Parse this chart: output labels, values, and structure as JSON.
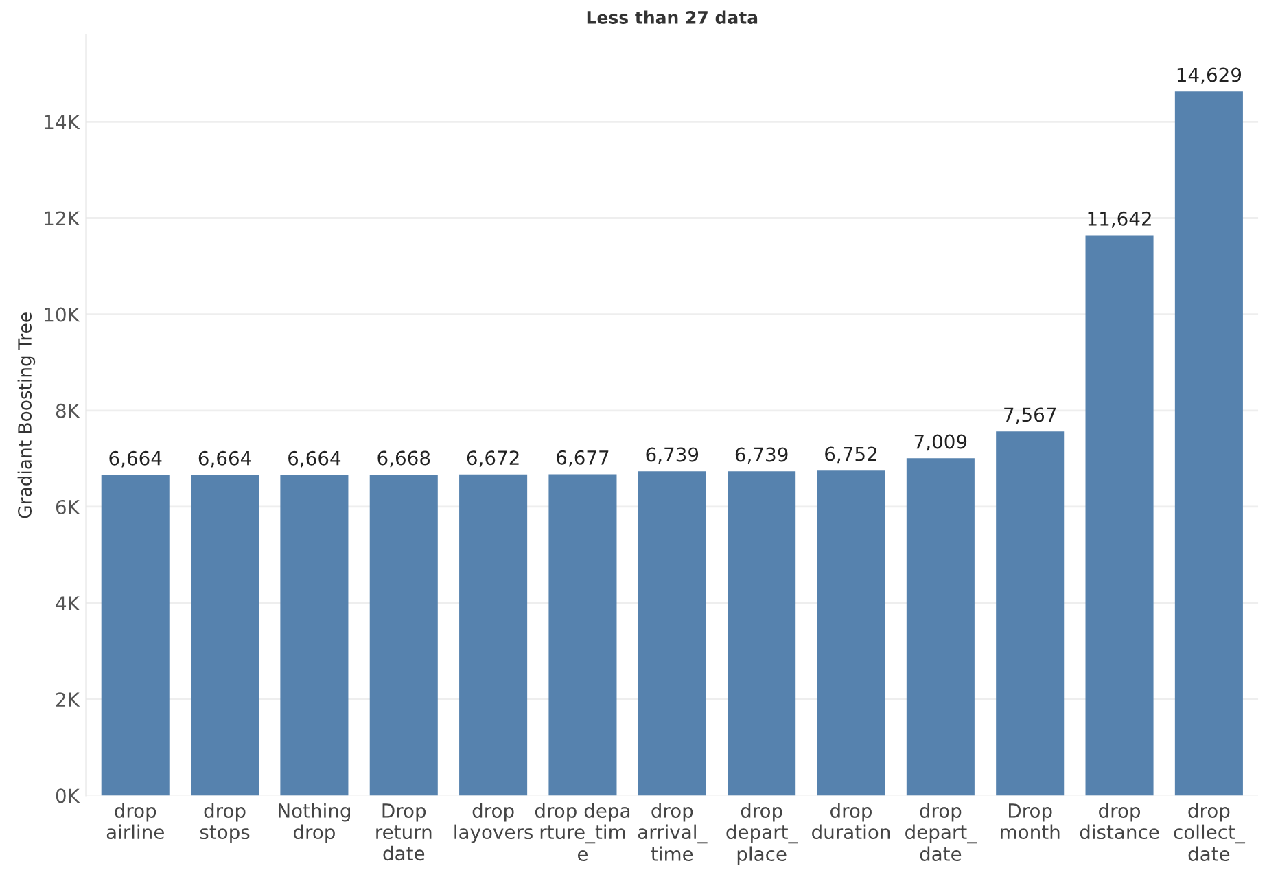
{
  "chart_data": {
    "type": "bar",
    "title": "Less than 27 data",
    "ylabel": "Gradiant Boosting Tree",
    "categories": [
      "drop\nairline",
      "drop\nstops",
      "Nothing\ndrop",
      "Drop\nreturn\ndate",
      "drop\nlayovers",
      "drop depa\nrture_tim\ne",
      "drop\narrival_\ntime",
      "drop\ndepart_\nplace",
      "drop\nduration",
      "drop\ndepart_\ndate",
      "Drop\nmonth",
      "drop\ndistance",
      "drop\ncollect_\ndate"
    ],
    "values": [
      6664,
      6664,
      6664,
      6668,
      6672,
      6677,
      6739,
      6739,
      6752,
      7009,
      7567,
      11642,
      14629
    ],
    "value_labels": [
      "6,664",
      "6,664",
      "6,664",
      "6,668",
      "6,672",
      "6,677",
      "6,739",
      "6,739",
      "6,752",
      "7,009",
      "7,567",
      "11,642",
      "14,629"
    ],
    "color": "#5682ae",
    "ylim": [
      0,
      15800
    ],
    "yticks": [
      {
        "value": 0,
        "label": "0K"
      },
      {
        "value": 2000,
        "label": "2K"
      },
      {
        "value": 4000,
        "label": "4K"
      },
      {
        "value": 6000,
        "label": "6K"
      },
      {
        "value": 8000,
        "label": "8K"
      },
      {
        "value": 10000,
        "label": "10K"
      },
      {
        "value": 12000,
        "label": "12K"
      },
      {
        "value": 14000,
        "label": "14K"
      }
    ],
    "grid": "y"
  }
}
